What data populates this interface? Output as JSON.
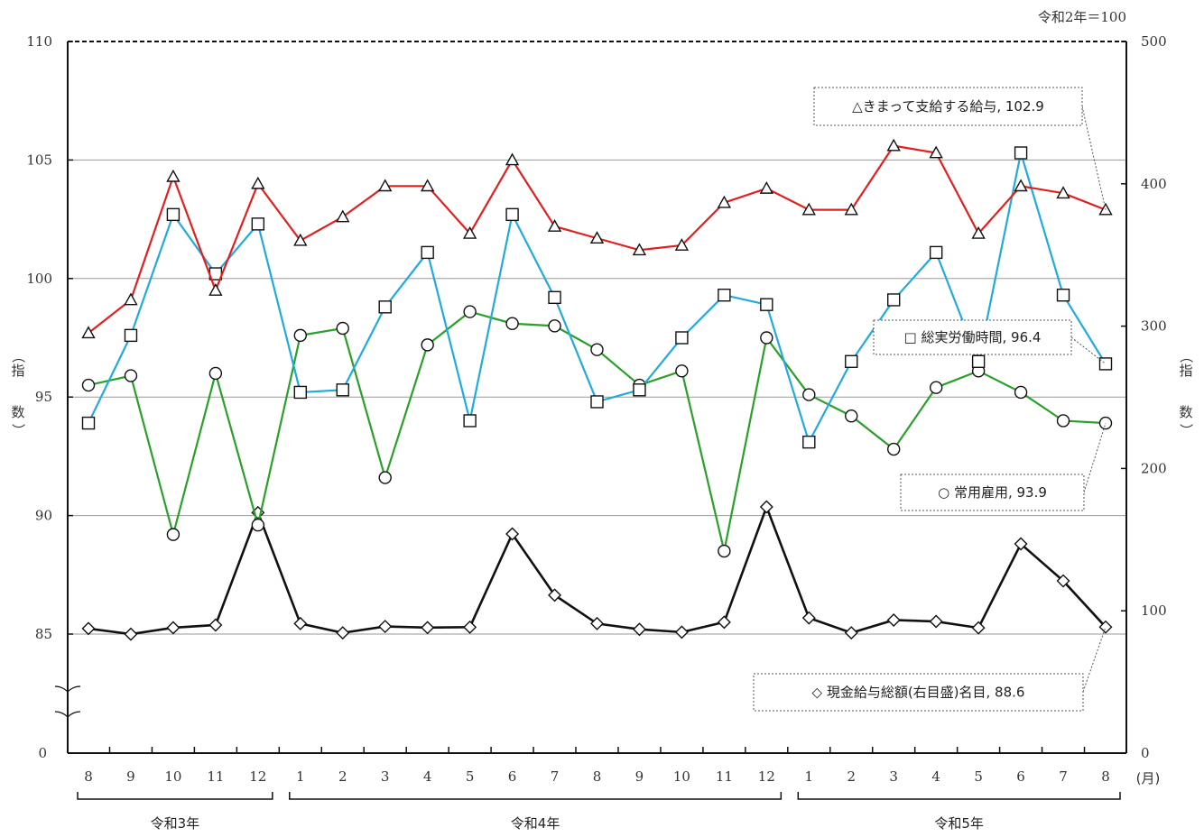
{
  "note": "令和2年＝100",
  "chart_data": {
    "type": "line",
    "months": [
      "8",
      "9",
      "10",
      "11",
      "12",
      "1",
      "2",
      "3",
      "4",
      "5",
      "6",
      "7",
      "8",
      "9",
      "10",
      "11",
      "12",
      "1",
      "2",
      "3",
      "4",
      "5",
      "6",
      "7",
      "8"
    ],
    "month_unit": "(月)",
    "year_groups": [
      {
        "label": "令和3年",
        "from": 0,
        "to": 4
      },
      {
        "label": "令和4年",
        "from": 5,
        "to": 16
      },
      {
        "label": "令和5年",
        "from": 17,
        "to": 24
      }
    ],
    "y_left": {
      "label": "（指数）",
      "range": [
        85,
        110
      ],
      "ticks": [
        0,
        85,
        90,
        95,
        100,
        105,
        110
      ],
      "axis_break": true
    },
    "y_right": {
      "label": "（指数）",
      "range": [
        0,
        500
      ],
      "ticks": [
        0,
        100,
        200,
        300,
        400,
        500
      ]
    },
    "grid": true,
    "series": [
      {
        "name": "きまって支給する給与",
        "marker": "triangle",
        "color": "#e02020",
        "axis": "left",
        "legend_label": "△きまって支給する給与, 102.9",
        "values": [
          97.7,
          99.1,
          104.3,
          99.5,
          104.0,
          101.6,
          102.6,
          103.9,
          103.9,
          101.9,
          105.0,
          102.2,
          101.7,
          101.2,
          101.4,
          103.2,
          103.8,
          102.9,
          102.9,
          105.6,
          105.3,
          101.9,
          103.9,
          103.6,
          102.9
        ]
      },
      {
        "name": "総実労働時間",
        "marker": "square",
        "color": "#22aadd",
        "axis": "left",
        "legend_label": "□ 総実労働時間, 96.4",
        "values": [
          93.9,
          97.6,
          102.7,
          100.2,
          102.3,
          95.2,
          95.3,
          98.8,
          101.1,
          94.0,
          102.7,
          99.2,
          94.8,
          95.3,
          97.5,
          99.3,
          98.9,
          93.1,
          96.5,
          99.1,
          101.1,
          96.5,
          105.3,
          99.3,
          96.4
        ]
      },
      {
        "name": "常用雇用",
        "marker": "circle",
        "color": "#2aa02a",
        "axis": "left",
        "legend_label": "○ 常用雇用, 93.9",
        "values": [
          95.5,
          95.9,
          89.2,
          96.0,
          89.6,
          97.6,
          97.9,
          91.6,
          97.2,
          98.6,
          98.1,
          98.0,
          97.0,
          95.5,
          96.1,
          88.5,
          97.5,
          95.1,
          94.2,
          92.8,
          95.4,
          96.1,
          95.2,
          94.0,
          93.9
        ]
      },
      {
        "name": "現金給与総額(右目盛)名目",
        "marker": "diamond",
        "color": "#111111",
        "axis": "right",
        "legend_label": "◇ 現金給与総額(右目盛)名目, 88.6",
        "values": [
          87.5,
          83.6,
          88.1,
          90.0,
          169.0,
          91.0,
          84.5,
          89.0,
          88.2,
          88.5,
          154.0,
          111.0,
          91.0,
          87.0,
          85.0,
          92.0,
          173.0,
          95.0,
          84.5,
          93.5,
          92.5,
          88.0,
          147.0,
          121.0,
          88.6
        ]
      }
    ]
  }
}
